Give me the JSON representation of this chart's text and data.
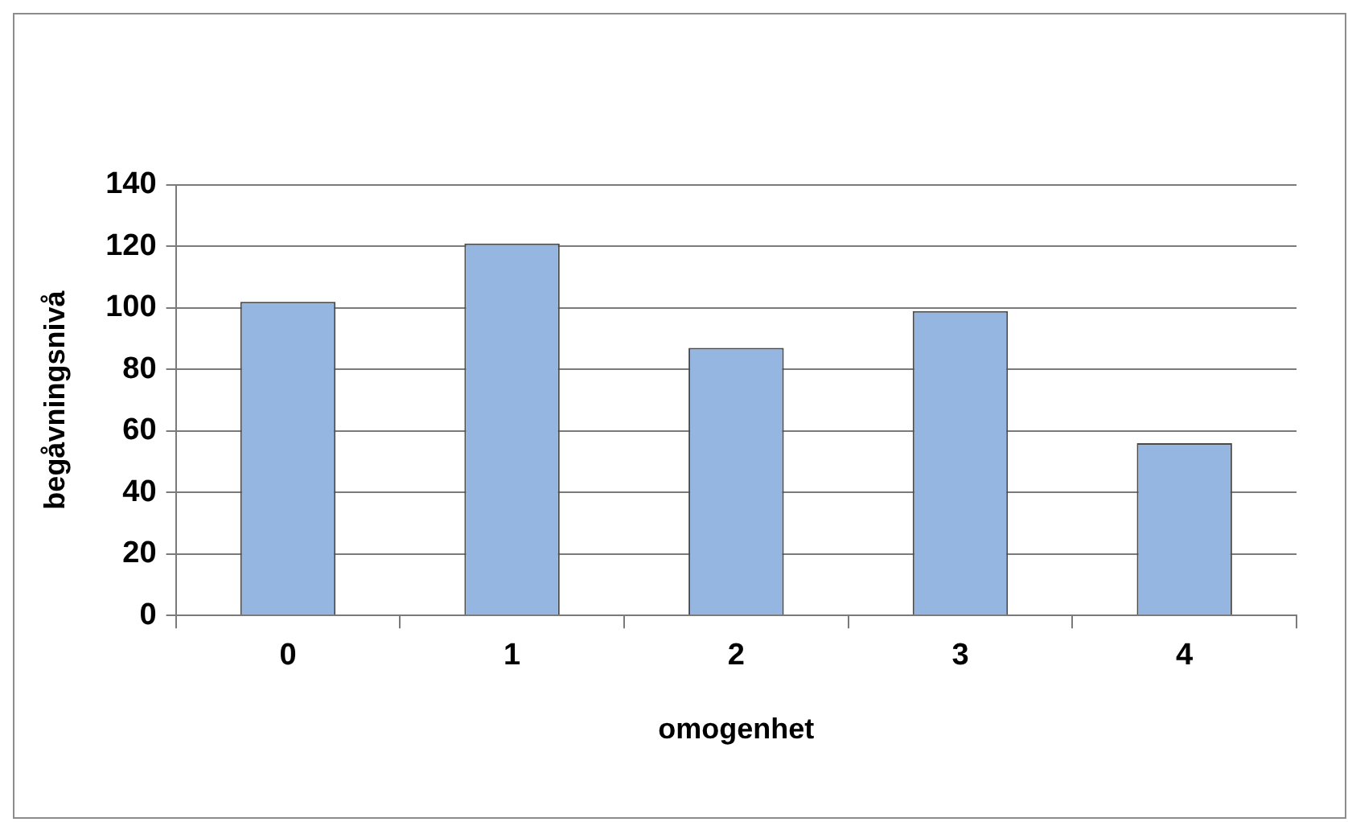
{
  "chart_data": {
    "type": "bar",
    "xlabel": "omogenhet",
    "ylabel": "begåvningsnivå",
    "categories": [
      "0",
      "1",
      "2",
      "3",
      "4"
    ],
    "values": [
      102,
      121,
      87,
      99,
      56
    ],
    "color": "#95b6e0",
    "ylim": [
      0,
      140
    ],
    "yticks": [
      0,
      20,
      40,
      60,
      80,
      100,
      120,
      140
    ],
    "grid": "y"
  }
}
